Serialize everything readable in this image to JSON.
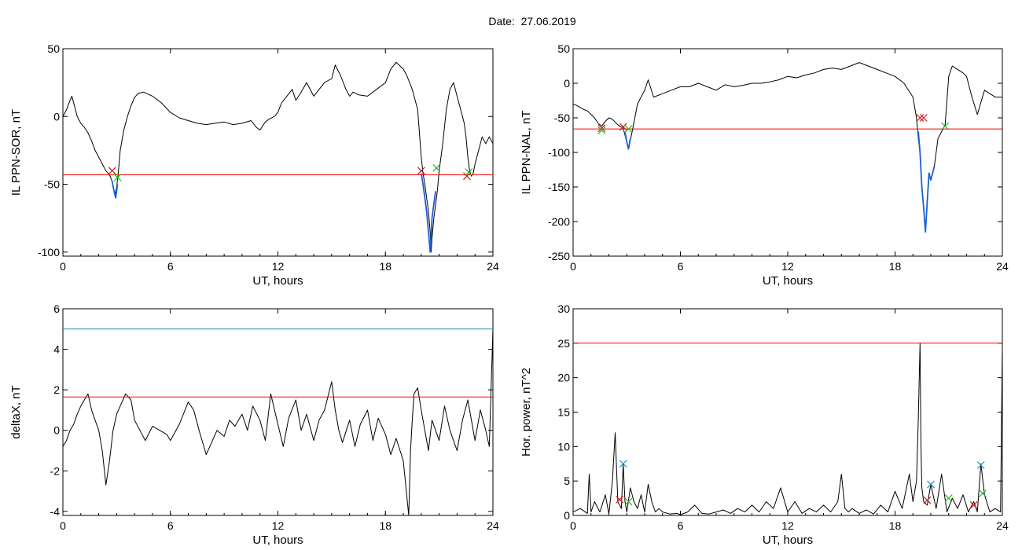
{
  "figure": {
    "date_label": "Date:",
    "date_value": "27.06.2019"
  },
  "chart_data": [
    {
      "type": "line",
      "id": "p1",
      "xlabel": "UT, hours",
      "ylabel": "IL PPN-SOR, nT",
      "xlim": [
        0,
        24
      ],
      "ylim": [
        -103,
        50
      ],
      "xticks": [
        0,
        6,
        12,
        18,
        24
      ],
      "yticks": [
        50,
        0,
        -50,
        -100
      ],
      "colors": {
        "trace": "#000000",
        "threshold": "#ff0000",
        "event": "#1a5fd6",
        "start_marker": "#cc1a1a",
        "end_marker": "#22bb22"
      },
      "series": [
        {
          "role": "trace",
          "x": [
            0.0,
            0.2,
            0.4,
            0.5,
            0.6,
            0.7,
            0.8,
            1.0,
            1.2,
            1.4,
            1.6,
            1.8,
            2.0,
            2.2,
            2.4,
            2.6,
            2.75,
            2.9,
            3.0,
            3.1,
            3.2,
            3.4,
            3.6,
            3.8,
            4.0,
            4.2,
            4.5,
            5.0,
            5.5,
            6.0,
            6.5,
            7.0,
            7.5,
            8.0,
            8.5,
            9.0,
            9.5,
            10.0,
            10.5,
            10.8,
            11.0,
            11.3,
            11.5,
            11.8,
            12.0,
            12.2,
            12.5,
            12.8,
            13.0,
            13.3,
            13.6,
            14.0,
            14.3,
            14.6,
            15.0,
            15.2,
            15.5,
            15.8,
            16.0,
            16.2,
            16.5,
            17.0,
            17.5,
            18.0,
            18.3,
            18.6,
            19.0,
            19.2,
            19.5,
            19.8,
            20.0,
            20.1,
            20.2,
            20.3,
            20.4,
            20.5,
            20.55,
            20.6,
            20.7,
            20.8,
            20.9,
            21.0,
            21.2,
            21.4,
            21.6,
            21.8,
            22.0,
            22.2,
            22.4,
            22.5,
            22.6,
            22.7,
            22.8,
            22.9,
            23.0,
            23.2,
            23.4,
            23.6,
            23.8,
            24.0
          ],
          "y": [
            0,
            5,
            12,
            15,
            10,
            5,
            0,
            -5,
            -8,
            -12,
            -18,
            -25,
            -30,
            -35,
            -40,
            -43,
            -48,
            -58,
            -52,
            -40,
            -25,
            -10,
            0,
            8,
            14,
            17,
            18,
            15,
            10,
            3,
            -1,
            -3,
            -5,
            -6,
            -5,
            -4,
            -6,
            -5,
            -3,
            -8,
            -10,
            -4,
            -2,
            0,
            3,
            10,
            15,
            20,
            12,
            18,
            25,
            15,
            20,
            25,
            28,
            38,
            30,
            20,
            15,
            18,
            16,
            15,
            20,
            25,
            35,
            40,
            35,
            30,
            20,
            5,
            -30,
            -42,
            -50,
            -60,
            -70,
            -85,
            -100,
            -90,
            -75,
            -65,
            -55,
            -40,
            -20,
            5,
            20,
            25,
            15,
            5,
            -5,
            -15,
            -30,
            -40,
            -44,
            -42,
            -35,
            -25,
            -15,
            -20,
            -15,
            -20
          ]
        },
        {
          "role": "threshold",
          "x": [
            0,
            24
          ],
          "y": [
            -43,
            -43
          ]
        },
        {
          "role": "event",
          "x": [
            2.75,
            2.85,
            2.95,
            3.05
          ],
          "y": [
            -48,
            -55,
            -60,
            -50
          ]
        },
        {
          "role": "event",
          "x": [
            20.0,
            20.1,
            20.2,
            20.3,
            20.4,
            20.5,
            20.55,
            20.6,
            20.7,
            20.8
          ],
          "y": [
            -42,
            -50,
            -60,
            -70,
            -85,
            -100,
            -90,
            -75,
            -65,
            -55
          ]
        },
        {
          "role": "start_marker",
          "x": [
            2.75,
            20.0,
            22.55
          ],
          "y": [
            -40,
            -40,
            -44
          ]
        },
        {
          "role": "end_marker",
          "x": [
            3.05,
            20.85,
            22.65
          ],
          "y": [
            -45,
            -38,
            -41
          ]
        }
      ]
    },
    {
      "type": "line",
      "id": "p2",
      "xlabel": "UT, hours",
      "ylabel": "IL PPN-NAL, nT",
      "xlim": [
        0,
        24
      ],
      "ylim": [
        -250,
        50
      ],
      "xticks": [
        0,
        6,
        12,
        18,
        24
      ],
      "yticks": [
        50,
        0,
        -50,
        -100,
        -150,
        -200,
        -250
      ],
      "colors": {
        "trace": "#000000",
        "threshold": "#ff0000",
        "event": "#1a5fd6",
        "start_marker": "#cc1a1a",
        "end_marker": "#22bb22"
      },
      "series": [
        {
          "role": "trace",
          "x": [
            0.0,
            0.2,
            0.4,
            0.6,
            0.8,
            1.0,
            1.2,
            1.4,
            1.6,
            1.8,
            2.0,
            2.2,
            2.5,
            2.8,
            3.0,
            3.1,
            3.3,
            3.6,
            4.0,
            4.2,
            4.5,
            5.0,
            5.5,
            6.0,
            6.5,
            7.0,
            7.5,
            8.0,
            8.5,
            9.0,
            9.5,
            10.0,
            10.5,
            11.0,
            11.5,
            12.0,
            12.5,
            13.0,
            13.5,
            14.0,
            14.5,
            15.0,
            15.5,
            16.0,
            16.5,
            17.0,
            17.5,
            18.0,
            18.5,
            19.0,
            19.2,
            19.3,
            19.4,
            19.5,
            19.6,
            19.7,
            19.8,
            19.9,
            20.0,
            20.2,
            20.4,
            20.6,
            20.8,
            21.0,
            21.2,
            21.5,
            21.8,
            22.0,
            22.3,
            22.6,
            23.0,
            23.3,
            23.6,
            24.0
          ],
          "y": [
            -30,
            -32,
            -35,
            -38,
            -40,
            -45,
            -50,
            -58,
            -62,
            -55,
            -50,
            -52,
            -60,
            -65,
            -85,
            -95,
            -70,
            -30,
            -10,
            5,
            -20,
            -15,
            -10,
            -5,
            -5,
            0,
            -5,
            -10,
            -2,
            -5,
            -3,
            0,
            0,
            2,
            5,
            10,
            8,
            12,
            15,
            20,
            22,
            20,
            25,
            30,
            25,
            20,
            15,
            10,
            0,
            -20,
            -50,
            -80,
            -100,
            -150,
            -180,
            -215,
            -170,
            -130,
            -140,
            -120,
            -80,
            -70,
            -60,
            10,
            25,
            20,
            15,
            10,
            -20,
            -45,
            -10,
            -15,
            -20,
            -20
          ]
        },
        {
          "role": "threshold",
          "x": [
            0,
            24
          ],
          "y": [
            -66,
            -66
          ]
        },
        {
          "role": "event",
          "x": [
            2.9,
            3.0,
            3.1,
            3.2
          ],
          "y": [
            -70,
            -85,
            -95,
            -80
          ]
        },
        {
          "role": "event",
          "x": [
            19.3,
            19.4,
            19.5,
            19.6,
            19.7,
            19.8,
            19.9,
            20.0,
            20.2
          ],
          "y": [
            -70,
            -100,
            -150,
            -180,
            -215,
            -170,
            -130,
            -140,
            -120
          ]
        },
        {
          "role": "start_marker",
          "x": [
            1.6,
            2.8,
            19.4,
            19.6
          ],
          "y": [
            -65,
            -63,
            -50,
            -50
          ]
        },
        {
          "role": "end_marker",
          "x": [
            1.6,
            3.1,
            20.8
          ],
          "y": [
            -68,
            -66,
            -62
          ]
        }
      ]
    },
    {
      "type": "line",
      "id": "p3",
      "xlabel": "UT, hours",
      "ylabel": "deltaX, nT",
      "xlim": [
        0,
        24
      ],
      "ylim": [
        -4.2,
        6
      ],
      "xticks": [
        0,
        6,
        12,
        18,
        24
      ],
      "yticks": [
        6,
        4,
        2,
        0,
        -2,
        -4
      ],
      "colors": {
        "trace": "#000000",
        "threshold": "#ff0000",
        "upper": "#1f8fbf"
      },
      "series": [
        {
          "role": "trace",
          "x": [
            0.0,
            0.2,
            0.4,
            0.6,
            0.8,
            1.0,
            1.2,
            1.4,
            1.6,
            1.8,
            2.0,
            2.2,
            2.4,
            2.6,
            2.8,
            3.0,
            3.2,
            3.5,
            3.8,
            4.0,
            4.3,
            4.6,
            5.0,
            5.4,
            5.8,
            6.0,
            6.5,
            7.0,
            7.3,
            7.6,
            8.0,
            8.3,
            8.6,
            9.0,
            9.3,
            9.6,
            10.0,
            10.3,
            10.6,
            11.0,
            11.3,
            11.6,
            12.0,
            12.3,
            12.6,
            13.0,
            13.3,
            13.6,
            14.0,
            14.3,
            14.6,
            15.0,
            15.2,
            15.4,
            15.6,
            16.0,
            16.3,
            16.6,
            17.0,
            17.3,
            17.6,
            18.0,
            18.3,
            18.6,
            19.0,
            19.3,
            19.4,
            19.5,
            19.6,
            19.8,
            20.0,
            20.2,
            20.4,
            20.6,
            20.8,
            21.0,
            21.3,
            21.6,
            22.0,
            22.3,
            22.6,
            23.0,
            23.3,
            23.6,
            23.8,
            24.0
          ],
          "y": [
            -0.8,
            -0.5,
            0.0,
            0.3,
            0.8,
            1.2,
            1.5,
            1.8,
            1.0,
            0.5,
            0.0,
            -1.0,
            -2.7,
            -1.5,
            0.0,
            0.8,
            1.2,
            1.8,
            1.5,
            0.5,
            0.0,
            -0.5,
            0.2,
            0.0,
            -0.2,
            -0.5,
            0.3,
            1.4,
            1.0,
            0.0,
            -1.2,
            -0.6,
            0.0,
            -0.3,
            0.5,
            0.2,
            0.8,
            0.0,
            1.2,
            0.5,
            -0.5,
            1.8,
            0.3,
            -0.8,
            0.6,
            1.5,
            0.0,
            0.8,
            -0.5,
            0.5,
            1.0,
            2.4,
            1.0,
            0.0,
            -0.6,
            0.5,
            -0.8,
            0.3,
            1.0,
            -0.5,
            0.6,
            -0.2,
            -1.2,
            -0.4,
            -1.5,
            -4.2,
            -1.0,
            0.5,
            1.8,
            2.1,
            1.0,
            0.0,
            -1.0,
            0.5,
            0.0,
            -0.5,
            1.2,
            0.0,
            -1.0,
            0.5,
            1.5,
            -0.5,
            1.0,
            0.0,
            -0.8,
            5.0
          ]
        },
        {
          "role": "threshold",
          "x": [
            0,
            24
          ],
          "y": [
            1.65,
            1.65
          ]
        },
        {
          "role": "upper",
          "x": [
            0,
            24
          ],
          "y": [
            5.0,
            5.0
          ]
        }
      ]
    },
    {
      "type": "line",
      "id": "p4",
      "xlabel": "UT, hours",
      "ylabel": "Hor. power, nT^2",
      "xlim": [
        0,
        24
      ],
      "ylim": [
        0,
        30
      ],
      "xticks": [
        0,
        6,
        12,
        18,
        24
      ],
      "yticks": [
        30,
        25,
        20,
        15,
        10,
        5,
        0
      ],
      "colors": {
        "trace": "#000000",
        "threshold": "#ff0000",
        "blue_marker": "#1f8fbf",
        "start_marker": "#cc1a1a",
        "end_marker": "#22bb22"
      },
      "series": [
        {
          "role": "trace",
          "x": [
            0.0,
            0.4,
            0.8,
            0.9,
            1.0,
            1.2,
            1.5,
            1.8,
            2.0,
            2.2,
            2.35,
            2.5,
            2.7,
            2.8,
            2.9,
            3.0,
            3.2,
            3.4,
            3.6,
            3.8,
            4.0,
            4.2,
            4.4,
            4.6,
            4.8,
            5.0,
            5.4,
            5.8,
            6.0,
            6.4,
            6.8,
            7.2,
            7.6,
            8.0,
            8.4,
            8.8,
            9.2,
            9.6,
            10.0,
            10.4,
            10.8,
            11.2,
            11.6,
            12.0,
            12.4,
            12.8,
            13.2,
            13.6,
            14.0,
            14.4,
            14.8,
            15.0,
            15.2,
            15.4,
            15.6,
            16.0,
            16.4,
            16.8,
            17.2,
            17.6,
            18.0,
            18.4,
            18.8,
            19.0,
            19.2,
            19.3,
            19.4,
            19.45,
            19.5,
            19.6,
            19.8,
            20.0,
            20.3,
            20.6,
            20.9,
            21.2,
            21.5,
            21.8,
            22.1,
            22.4,
            22.6,
            22.8,
            23.0,
            23.3,
            23.6,
            23.9,
            24.0
          ],
          "y": [
            0.5,
            1.0,
            0.3,
            6.0,
            0.5,
            2.0,
            0.5,
            3.0,
            0.2,
            5.0,
            12.0,
            2.0,
            1.0,
            7.5,
            2.0,
            0.5,
            4.0,
            2.0,
            1.0,
            3.0,
            0.5,
            4.5,
            2.0,
            0.5,
            1.0,
            0.5,
            0.2,
            0.3,
            0.1,
            0.5,
            1.5,
            0.3,
            0.2,
            0.5,
            0.8,
            0.3,
            1.0,
            0.5,
            1.5,
            0.5,
            2.0,
            1.0,
            4.0,
            0.5,
            2.0,
            0.3,
            1.0,
            0.5,
            1.5,
            0.5,
            2.0,
            6.0,
            1.0,
            0.5,
            1.0,
            0.3,
            0.8,
            0.2,
            1.5,
            0.5,
            3.5,
            1.0,
            6.0,
            2.0,
            5.0,
            14.0,
            25.0,
            10.0,
            4.0,
            2.0,
            1.5,
            4.5,
            1.0,
            6.0,
            0.5,
            2.5,
            1.0,
            3.0,
            0.5,
            2.0,
            0.5,
            7.5,
            3.0,
            0.5,
            1.0,
            0.5,
            24.5
          ]
        },
        {
          "role": "threshold",
          "x": [
            0,
            24
          ],
          "y": [
            25,
            25
          ]
        },
        {
          "role": "blue_marker",
          "x": [
            2.8,
            20.0,
            22.8
          ],
          "y": [
            7.5,
            4.5,
            7.3
          ]
        },
        {
          "role": "start_marker",
          "x": [
            2.6,
            19.8,
            22.4
          ],
          "y": [
            2.3,
            2.2,
            1.5
          ]
        },
        {
          "role": "end_marker",
          "x": [
            3.1,
            21.0,
            22.9
          ],
          "y": [
            2.0,
            2.5,
            3.2
          ]
        }
      ]
    }
  ]
}
